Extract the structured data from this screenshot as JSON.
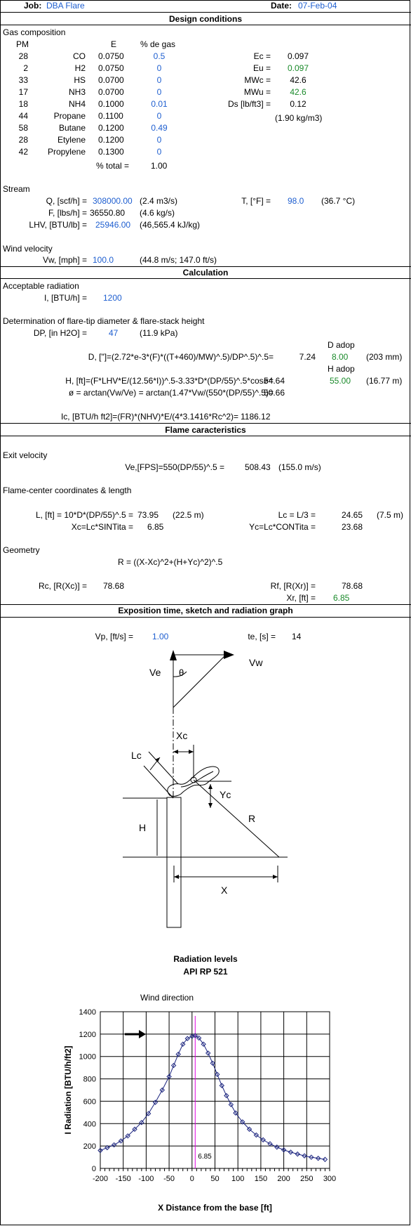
{
  "header": {
    "job_label": "Job:",
    "job_value": "DBA Flare",
    "date_label": "Date:",
    "date_value": "07-Feb-04"
  },
  "sections": {
    "design": "Design conditions",
    "calculation": "Calculation",
    "flame": "Flame caracteristics",
    "exposition": "Exposition time, sketch and radiation graph"
  },
  "gas": {
    "title": "Gas composition",
    "col_pm": "PM",
    "col_e": "E",
    "col_pct": "% de gas",
    "rows": [
      {
        "pm": "28",
        "name": "CO",
        "e": "0.0750",
        "pct": "0.5"
      },
      {
        "pm": "2",
        "name": "H2",
        "e": "0.0750",
        "pct": "0"
      },
      {
        "pm": "33",
        "name": "HS",
        "e": "0.0700",
        "pct": "0"
      },
      {
        "pm": "17",
        "name": "NH3",
        "e": "0.0700",
        "pct": "0"
      },
      {
        "pm": "18",
        "name": "NH4",
        "e": "0.1000",
        "pct": "0.01"
      },
      {
        "pm": "44",
        "name": "Propane",
        "e": "0.1100",
        "pct": "0"
      },
      {
        "pm": "58",
        "name": "Butane",
        "e": "0.1200",
        "pct": "0.49"
      },
      {
        "pm": "28",
        "name": "Etylene",
        "e": "0.1200",
        "pct": "0"
      },
      {
        "pm": "42",
        "name": "Propylene",
        "e": "0.1300",
        "pct": "0"
      }
    ],
    "total_label": "% total =",
    "total_value": "1.00",
    "props": [
      {
        "label": "Ec =",
        "value": "0.097",
        "cls": ""
      },
      {
        "label": "Eu =",
        "value": "0.097",
        "cls": "green"
      },
      {
        "label": "MWc =",
        "value": "42.6",
        "cls": ""
      },
      {
        "label": "MWu =",
        "value": "42.6",
        "cls": "green"
      },
      {
        "label": "Ds [lb/ft3] =",
        "value": "0.12",
        "cls": ""
      }
    ],
    "ds_metric": "(1.90 kg/m3)"
  },
  "stream": {
    "title": "Stream",
    "q_label": "Q, [scf/h] =",
    "q_value": "308000.00",
    "q_metric": "(2.4 m3/s)",
    "t_label": "T, [°F] =",
    "t_value": "98.0",
    "t_metric": "(36.7 °C)",
    "f_label": "F, [lbs/h] =",
    "f_value": "36550.80",
    "f_metric": "(4.6 kg/s)",
    "lhv_label": "LHV, [BTU/lb] =",
    "lhv_value": "25946.00",
    "lhv_metric": "(46,565.4 kJ/kg)"
  },
  "wind": {
    "title": "Wind velocity",
    "vw_label": "Vw, [mph] =",
    "vw_value": "100.0",
    "vw_metric": "(44.8 m/s; 147.0 ft/s)"
  },
  "calc": {
    "rad_title": "Acceptable radiation",
    "i_label": "I, [BTU/h] =",
    "i_value": "1200",
    "det_title": "Determination of flare-tip diameter & flare-stack height",
    "dp_label": "DP, [in H2O] =",
    "dp_value": "47",
    "dp_metric": "(11.9 kPa)",
    "d_adop_label": "D adop",
    "d_formula": "D, [\"]=(2.72*e-3*(F)*((T+460)/MW)^.5)/DP^.5)^.5=",
    "d_value": "7.24",
    "d_adop_value": "8.00",
    "d_metric": "(203 mm)",
    "h_adop_label": "H adop",
    "h_formula": "H, [ft]=(F*LHV*E/(12.56*I))^.5-3.33*D*(DP/55)^.5*cosø=",
    "h_value": "54.64",
    "h_adop_value": "55.00",
    "h_metric": "(16.77 m)",
    "phi_formula": "ø = arctan(Vw/Ve) = arctan(1.47*Vw/(550*(DP/55)^.5)=",
    "phi_value": "50.66",
    "ic_formula": "Ic, [BTU/h ft2]=(FR)*(NHV)*E/(4*3.1416*Rc^2)=",
    "ic_value": "1186.12"
  },
  "flame": {
    "exit_title": "Exit velocity",
    "ve_formula": "Ve,[FPS]=550(DP/55)^.5 =",
    "ve_value": "508.43",
    "ve_metric": "(155.0 m/s)",
    "coord_title": "Flame-center coordinates & length",
    "l_formula": "L, [ft] = 10*D*(DP/55)^.5 =",
    "l_value": "73.95",
    "l_metric": "(22.5 m)",
    "lc_formula": "Lc = L/3 =",
    "lc_value": "24.65",
    "lc_metric": "(7.5 m)",
    "xc_formula": "Xc=Lc*SINTita =",
    "xc_value": "6.85",
    "yc_formula": "Yc=Lc*CONTita =",
    "yc_value": "23.68",
    "geom_title": "Geometry",
    "r_formula": "R = ((X-Xc)^2+(H+Yc)^2)^.5",
    "rc_label": "Rc, [R(Xc)] =",
    "rc_value": "78.68",
    "rf_label": "Rf, [R(Xr)] =",
    "rf_value": "78.68",
    "xr_label": "Xr, [ft] =",
    "xr_value": "6.85"
  },
  "expo": {
    "vp_label": "Vp, [ft/s] =",
    "vp_value": "1.00",
    "te_label": "te, [s] =",
    "te_value": "14"
  },
  "sketch": {
    "ve": "Ve",
    "vw": "Vw",
    "theta": "θ",
    "xc": "Xc",
    "lc": "Lc",
    "yc": "Yc",
    "h": "H",
    "r": "R",
    "x": "X"
  },
  "colors": {
    "blue": "#1f5fd0",
    "green": "#1a8a2a",
    "curve": "#1a237e",
    "marker": "#e000e0"
  },
  "chart_data": {
    "type": "line",
    "title": "Radiation levels\nAPI RP 521",
    "title_line1": "Radiation levels",
    "title_line2": "API RP 521",
    "annotation": "Wind direction",
    "marker_label": "6.85",
    "marker_x": 6.85,
    "xlabel": "X Distance from the base [ft]",
    "ylabel": "I Radiation [BTU/h/ft2]",
    "xlim": [
      -200,
      300
    ],
    "ylim": [
      0,
      1400
    ],
    "xticks": [
      -200,
      -150,
      -100,
      -50,
      0,
      50,
      100,
      150,
      200,
      250,
      300
    ],
    "yticks": [
      0,
      200,
      400,
      600,
      800,
      1000,
      1200,
      1400
    ],
    "grid": true,
    "series": [
      {
        "x": [
          -200,
          -185,
          -170,
          -155,
          -140,
          -125,
          -110,
          -95,
          -80,
          -65,
          -50,
          -40,
          -30,
          -20,
          -10,
          0,
          6.85,
          15,
          25,
          35,
          45,
          55,
          65,
          75,
          85,
          95,
          110,
          125,
          140,
          155,
          170,
          185,
          200,
          215,
          230,
          245,
          260,
          275,
          290
        ],
        "y": [
          160,
          185,
          210,
          245,
          290,
          350,
          410,
          490,
          590,
          700,
          820,
          920,
          1020,
          1110,
          1160,
          1180,
          1186,
          1165,
          1110,
          1030,
          940,
          840,
          740,
          650,
          570,
          495,
          415,
          350,
          298,
          255,
          220,
          190,
          165,
          145,
          128,
          112,
          100,
          90,
          80
        ]
      }
    ]
  }
}
